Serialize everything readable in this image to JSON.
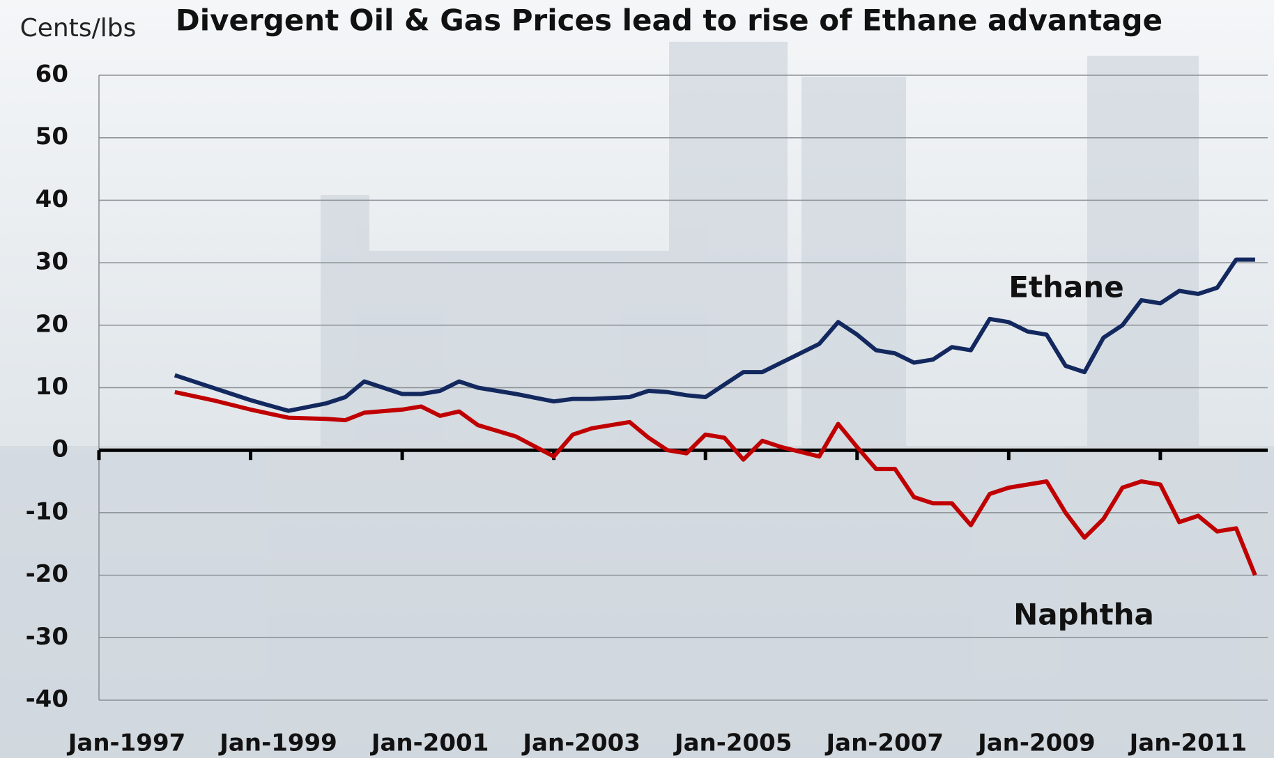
{
  "chart_data": {
    "type": "line",
    "title": "Divergent Oil & Gas Prices lead to rise of Ethane advantage",
    "y_label": "Cents/lbs",
    "x": [
      "Jan-1998",
      "Jul-1998",
      "Jan-1999",
      "Jul-1999",
      "Jan-2000",
      "Apr-2000",
      "Jul-2000",
      "Jan-2001",
      "Apr-2001",
      "Jul-2001",
      "Oct-2001",
      "Jan-2002",
      "Jul-2002",
      "Jan-2003",
      "Apr-2003",
      "Jul-2003",
      "Jan-2004",
      "Apr-2004",
      "Jul-2004",
      "Oct-2004",
      "Jan-2005",
      "Apr-2005",
      "Jul-2005",
      "Oct-2005",
      "Jan-2006",
      "Jul-2006",
      "Oct-2006",
      "Jan-2007",
      "Apr-2007",
      "Jul-2007",
      "Oct-2007",
      "Jan-2008",
      "Apr-2008",
      "Jul-2008",
      "Oct-2008",
      "Jan-2009",
      "Apr-2009",
      "Jul-2009",
      "Oct-2009",
      "Jan-2010",
      "Apr-2010",
      "Jul-2010",
      "Oct-2010",
      "Jan-2011",
      "Apr-2011",
      "Jul-2011",
      "Oct-2011",
      "Jan-2012",
      "Apr-2012"
    ],
    "series": [
      {
        "name": "Ethane",
        "color": "#12285e",
        "values": [
          12,
          10,
          8,
          6.3,
          7.5,
          8.5,
          11,
          9,
          9,
          9.5,
          11,
          10,
          9,
          7.8,
          8.2,
          8.2,
          8.5,
          9.5,
          9.3,
          8.8,
          8.5,
          10.5,
          12.5,
          12.5,
          14,
          17,
          20.5,
          18.5,
          16,
          15.5,
          14,
          14.5,
          16.5,
          16,
          21,
          20.5,
          19,
          18.5,
          13.5,
          12.5,
          18,
          20,
          24,
          23.5,
          25.5,
          25,
          26,
          30.5,
          30.5
        ]
      },
      {
        "name": "Naphtha",
        "color": "#c00000",
        "values": [
          9.3,
          8,
          6.5,
          5.2,
          5,
          4.8,
          6,
          6.5,
          7,
          5.5,
          6.2,
          4,
          2.2,
          -1,
          2.5,
          3.5,
          4.5,
          2,
          0,
          -0.5,
          2.5,
          2,
          -1.5,
          1.5,
          0.5,
          -1,
          4.2,
          0.5,
          -3,
          -3,
          -7.5,
          -8.5,
          -8.5,
          -12,
          -7,
          -6,
          -5.5,
          -5,
          -10,
          -14,
          -11,
          -6,
          -5,
          -5.5,
          -11.5,
          -10.5,
          -13,
          -12.5,
          -20
        ]
      }
    ],
    "xlim": [
      "Jan-1997",
      "Jun-2012"
    ],
    "xticks": [
      "Jan-1997",
      "Jan-1999",
      "Jan-2001",
      "Jan-2003",
      "Jan-2005",
      "Jan-2007",
      "Jan-2009",
      "Jan-2011"
    ],
    "ylim": [
      -40,
      60
    ],
    "yticks": [
      -40,
      -30,
      -20,
      -10,
      0,
      10,
      20,
      30,
      40,
      50,
      60
    ],
    "grid": true
  }
}
